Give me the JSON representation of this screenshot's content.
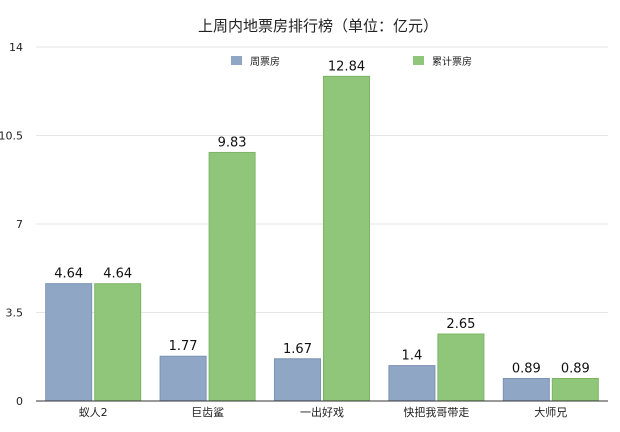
{
  "chart_data": {
    "type": "bar",
    "title": "上周内地票房排行榜（单位：亿元）",
    "categories": [
      "蚁人2",
      "巨齿鲨",
      "一出好戏",
      "快把我哥带走",
      "大师兄"
    ],
    "series": [
      {
        "name": "周票房",
        "values": [
          4.64,
          1.77,
          1.67,
          1.4,
          0.89
        ],
        "color": "#8fa6c4",
        "edge": "#7a93b4"
      },
      {
        "name": "累计票房",
        "values": [
          4.64,
          9.83,
          12.84,
          2.65,
          0.89
        ],
        "color": "#90c67a",
        "edge": "#7db566"
      }
    ],
    "ylim": [
      0,
      14
    ],
    "yticks": [
      0,
      3.5,
      7,
      10.5,
      14
    ],
    "ytick_labels": [
      "0",
      "3.5",
      "7",
      "10.5",
      "14"
    ],
    "grid": true,
    "legend": "top-center"
  }
}
